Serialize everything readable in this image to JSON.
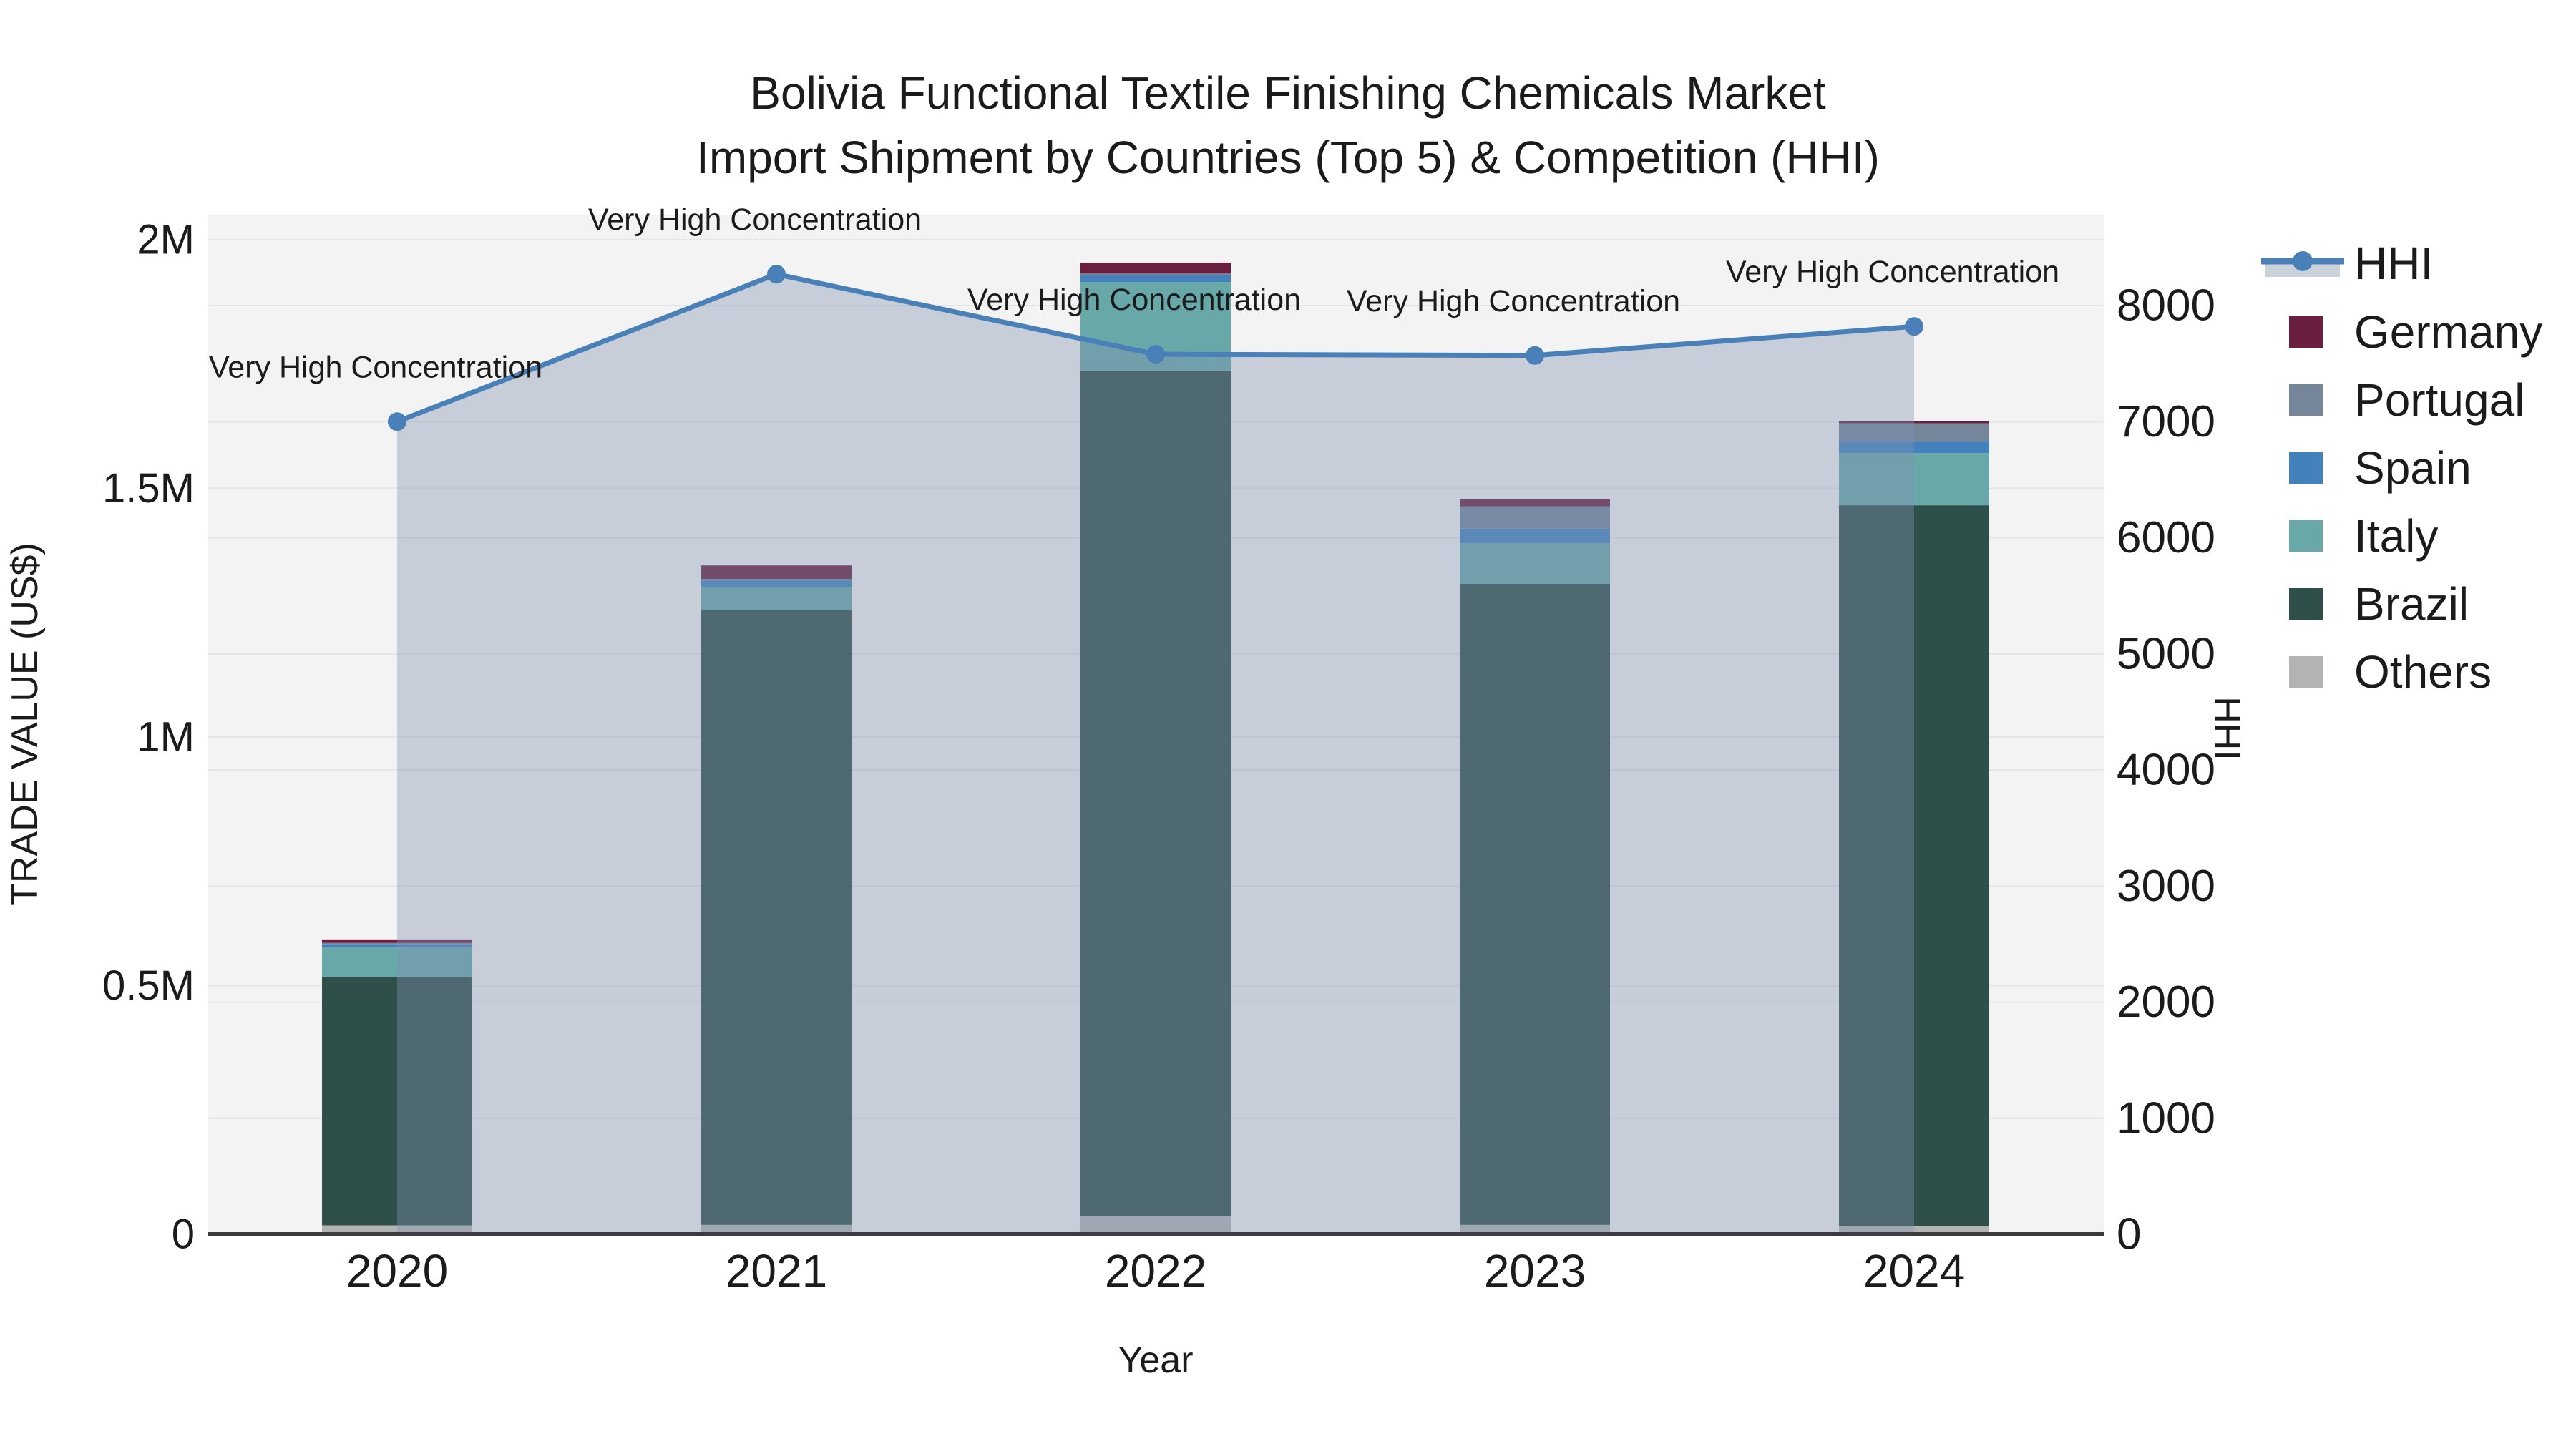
{
  "title": {
    "line1": "Bolivia Functional Textile Finishing Chemicals Market",
    "line2": "Import Shipment by Countries (Top 5) & Competition (HHI)"
  },
  "chart_data": {
    "type": "combo: stacked bar (trade value) + line with area fill (HHI)",
    "x_axis": {
      "title": "Year",
      "categories": [
        "2020",
        "2021",
        "2022",
        "2023",
        "2024"
      ]
    },
    "left_axis": {
      "title": "TRADE VALUE (US$)",
      "range": [
        0,
        2050000
      ],
      "ticks": [
        {
          "value": 0,
          "label": "0"
        },
        {
          "value": 500000,
          "label": "0.5M"
        },
        {
          "value": 1000000,
          "label": "1M"
        },
        {
          "value": 1500000,
          "label": "1.5M"
        },
        {
          "value": 2000000,
          "label": "2M"
        }
      ]
    },
    "right_axis": {
      "title": "HHI",
      "range": [
        0,
        8780
      ],
      "ticks": [
        {
          "value": 0,
          "label": "0"
        },
        {
          "value": 1000,
          "label": "1000"
        },
        {
          "value": 2000,
          "label": "2000"
        },
        {
          "value": 3000,
          "label": "3000"
        },
        {
          "value": 4000,
          "label": "4000"
        },
        {
          "value": 5000,
          "label": "5000"
        },
        {
          "value": 6000,
          "label": "6000"
        },
        {
          "value": 7000,
          "label": "7000"
        },
        {
          "value": 8000,
          "label": "8000"
        }
      ]
    },
    "bar_series_bottom_to_top": [
      {
        "name": "Others",
        "color": "#b2b4b4",
        "values": [
          18000,
          19000,
          37000,
          19000,
          17000
        ]
      },
      {
        "name": "Brazil",
        "color": "#2f4f4b",
        "values": [
          500000,
          1236000,
          1700000,
          1289000,
          1449000
        ]
      },
      {
        "name": "Italy",
        "color": "#68a8a9",
        "values": [
          59000,
          47000,
          178000,
          82000,
          105000
        ]
      },
      {
        "name": "Spain",
        "color": "#4381bd",
        "values": [
          6000,
          13000,
          13000,
          29000,
          23000
        ]
      },
      {
        "name": "Portugal",
        "color": "#75869b",
        "values": [
          3000,
          3000,
          4000,
          45000,
          37000
        ]
      },
      {
        "name": "Germany",
        "color": "#6b1f40",
        "values": [
          7000,
          27000,
          22000,
          14000,
          4000
        ]
      }
    ],
    "line_series": {
      "name": "HHI",
      "color": "#4a80b8",
      "fill_color": "rgba(130,148,180,0.38)",
      "values": [
        7000,
        8270,
        7580,
        7570,
        7820
      ]
    },
    "annotations": [
      "Very High Concentration",
      "Very High Concentration",
      "Very High Concentration",
      "Very High Concentration",
      "Very High Concentration"
    ],
    "legend": {
      "items": [
        {
          "label": "HHI",
          "type": "line",
          "color": "#4a80b8",
          "band_color": "#ccd2da"
        },
        {
          "label": "Germany",
          "type": "swatch",
          "color": "#6b1f40"
        },
        {
          "label": "Portugal",
          "type": "swatch",
          "color": "#75869b"
        },
        {
          "label": "Spain",
          "type": "swatch",
          "color": "#4381bd"
        },
        {
          "label": "Italy",
          "type": "swatch",
          "color": "#68a8a9"
        },
        {
          "label": "Brazil",
          "type": "swatch",
          "color": "#2f4f4b"
        },
        {
          "label": "Others",
          "type": "swatch",
          "color": "#b2b4b4"
        }
      ]
    },
    "style_colors": {
      "plot_background": "#f2f3f2",
      "gridline": "#e3e5e7",
      "axis_line": "#3c3c3c",
      "text": "#1b1b1b"
    }
  }
}
